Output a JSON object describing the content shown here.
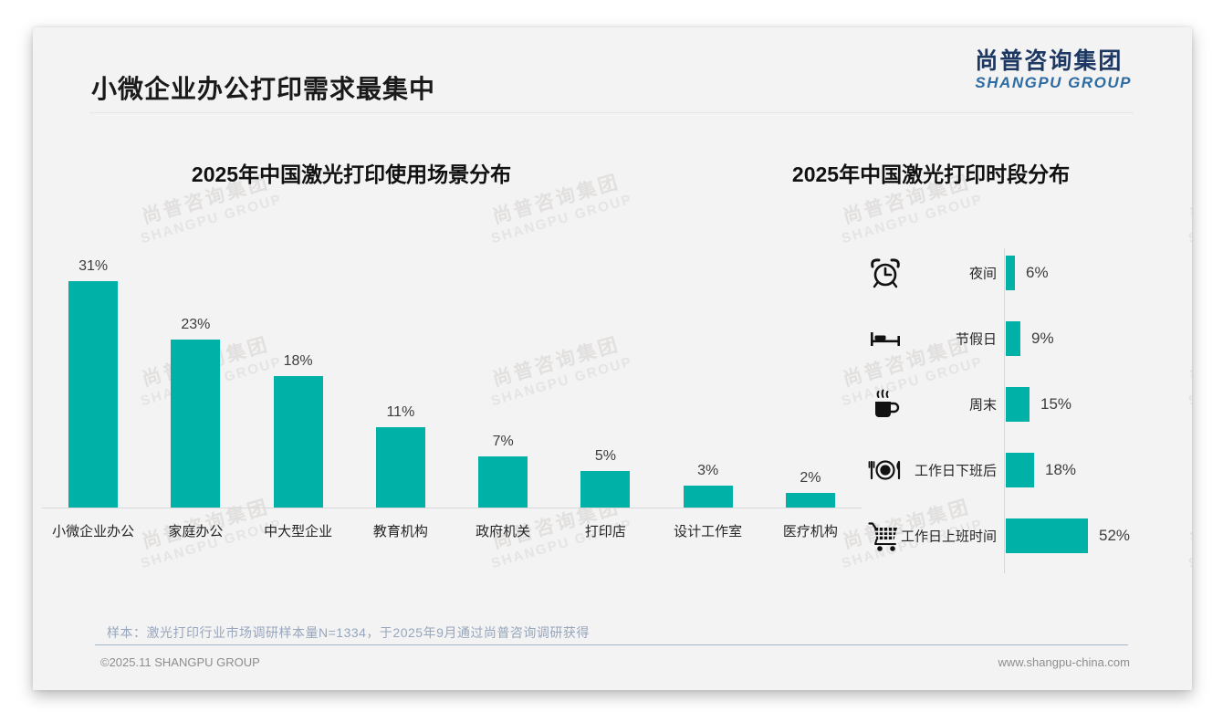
{
  "page": {
    "title": "小微企业办公打印需求最集中",
    "logo": {
      "cn": "尚普咨询集团",
      "en": "SHANGPU GROUP"
    },
    "watermark": {
      "line1": "尚普咨询集团",
      "line2": "SHANGPU GROUP"
    },
    "footer": {
      "note": "样本：激光打印行业市场调研样本量N=1334，于2025年9月通过尚普咨询调研获得",
      "copyright": "©2025.11 SHANGPU GROUP",
      "website": "www.shangpu-china.com"
    }
  },
  "colors": {
    "bar_teal": "#00b1a8",
    "logo_cn": "#1d3862",
    "logo_en": "#2d6ba3",
    "note_text": "#97a6bd",
    "card_bg": "#f3f3f3"
  },
  "chart_data": [
    {
      "type": "bar",
      "title": "2025年中国激光打印使用场景分布",
      "categories": [
        "小微企业办公",
        "家庭办公",
        "中大型企业",
        "教育机构",
        "政府机关",
        "打印店",
        "设计工作室",
        "医疗机构"
      ],
      "values": [
        31,
        23,
        18,
        11,
        7,
        5,
        3,
        2
      ],
      "value_labels": [
        "31%",
        "23%",
        "18%",
        "11%",
        "7%",
        "5%",
        "3%",
        "2%"
      ],
      "unit": "%",
      "ylim": [
        0,
        34
      ],
      "grid": false,
      "bar_color": "#00b1a8"
    },
    {
      "type": "bar-horizontal",
      "title": "2025年中国激光打印时段分布",
      "categories": [
        "夜间",
        "节假日",
        "周末",
        "工作日下班后",
        "工作日上班时间"
      ],
      "values": [
        6,
        9,
        15,
        18,
        52
      ],
      "value_labels": [
        "6%",
        "9%",
        "15%",
        "18%",
        "52%"
      ],
      "icons": [
        "alarm-clock-icon",
        "bed-icon",
        "coffee-cup-icon",
        "meal-icon",
        "shopping-cart-icon"
      ],
      "xlim": [
        0,
        60
      ],
      "grid": false,
      "bar_color": "#00b1a8"
    }
  ]
}
